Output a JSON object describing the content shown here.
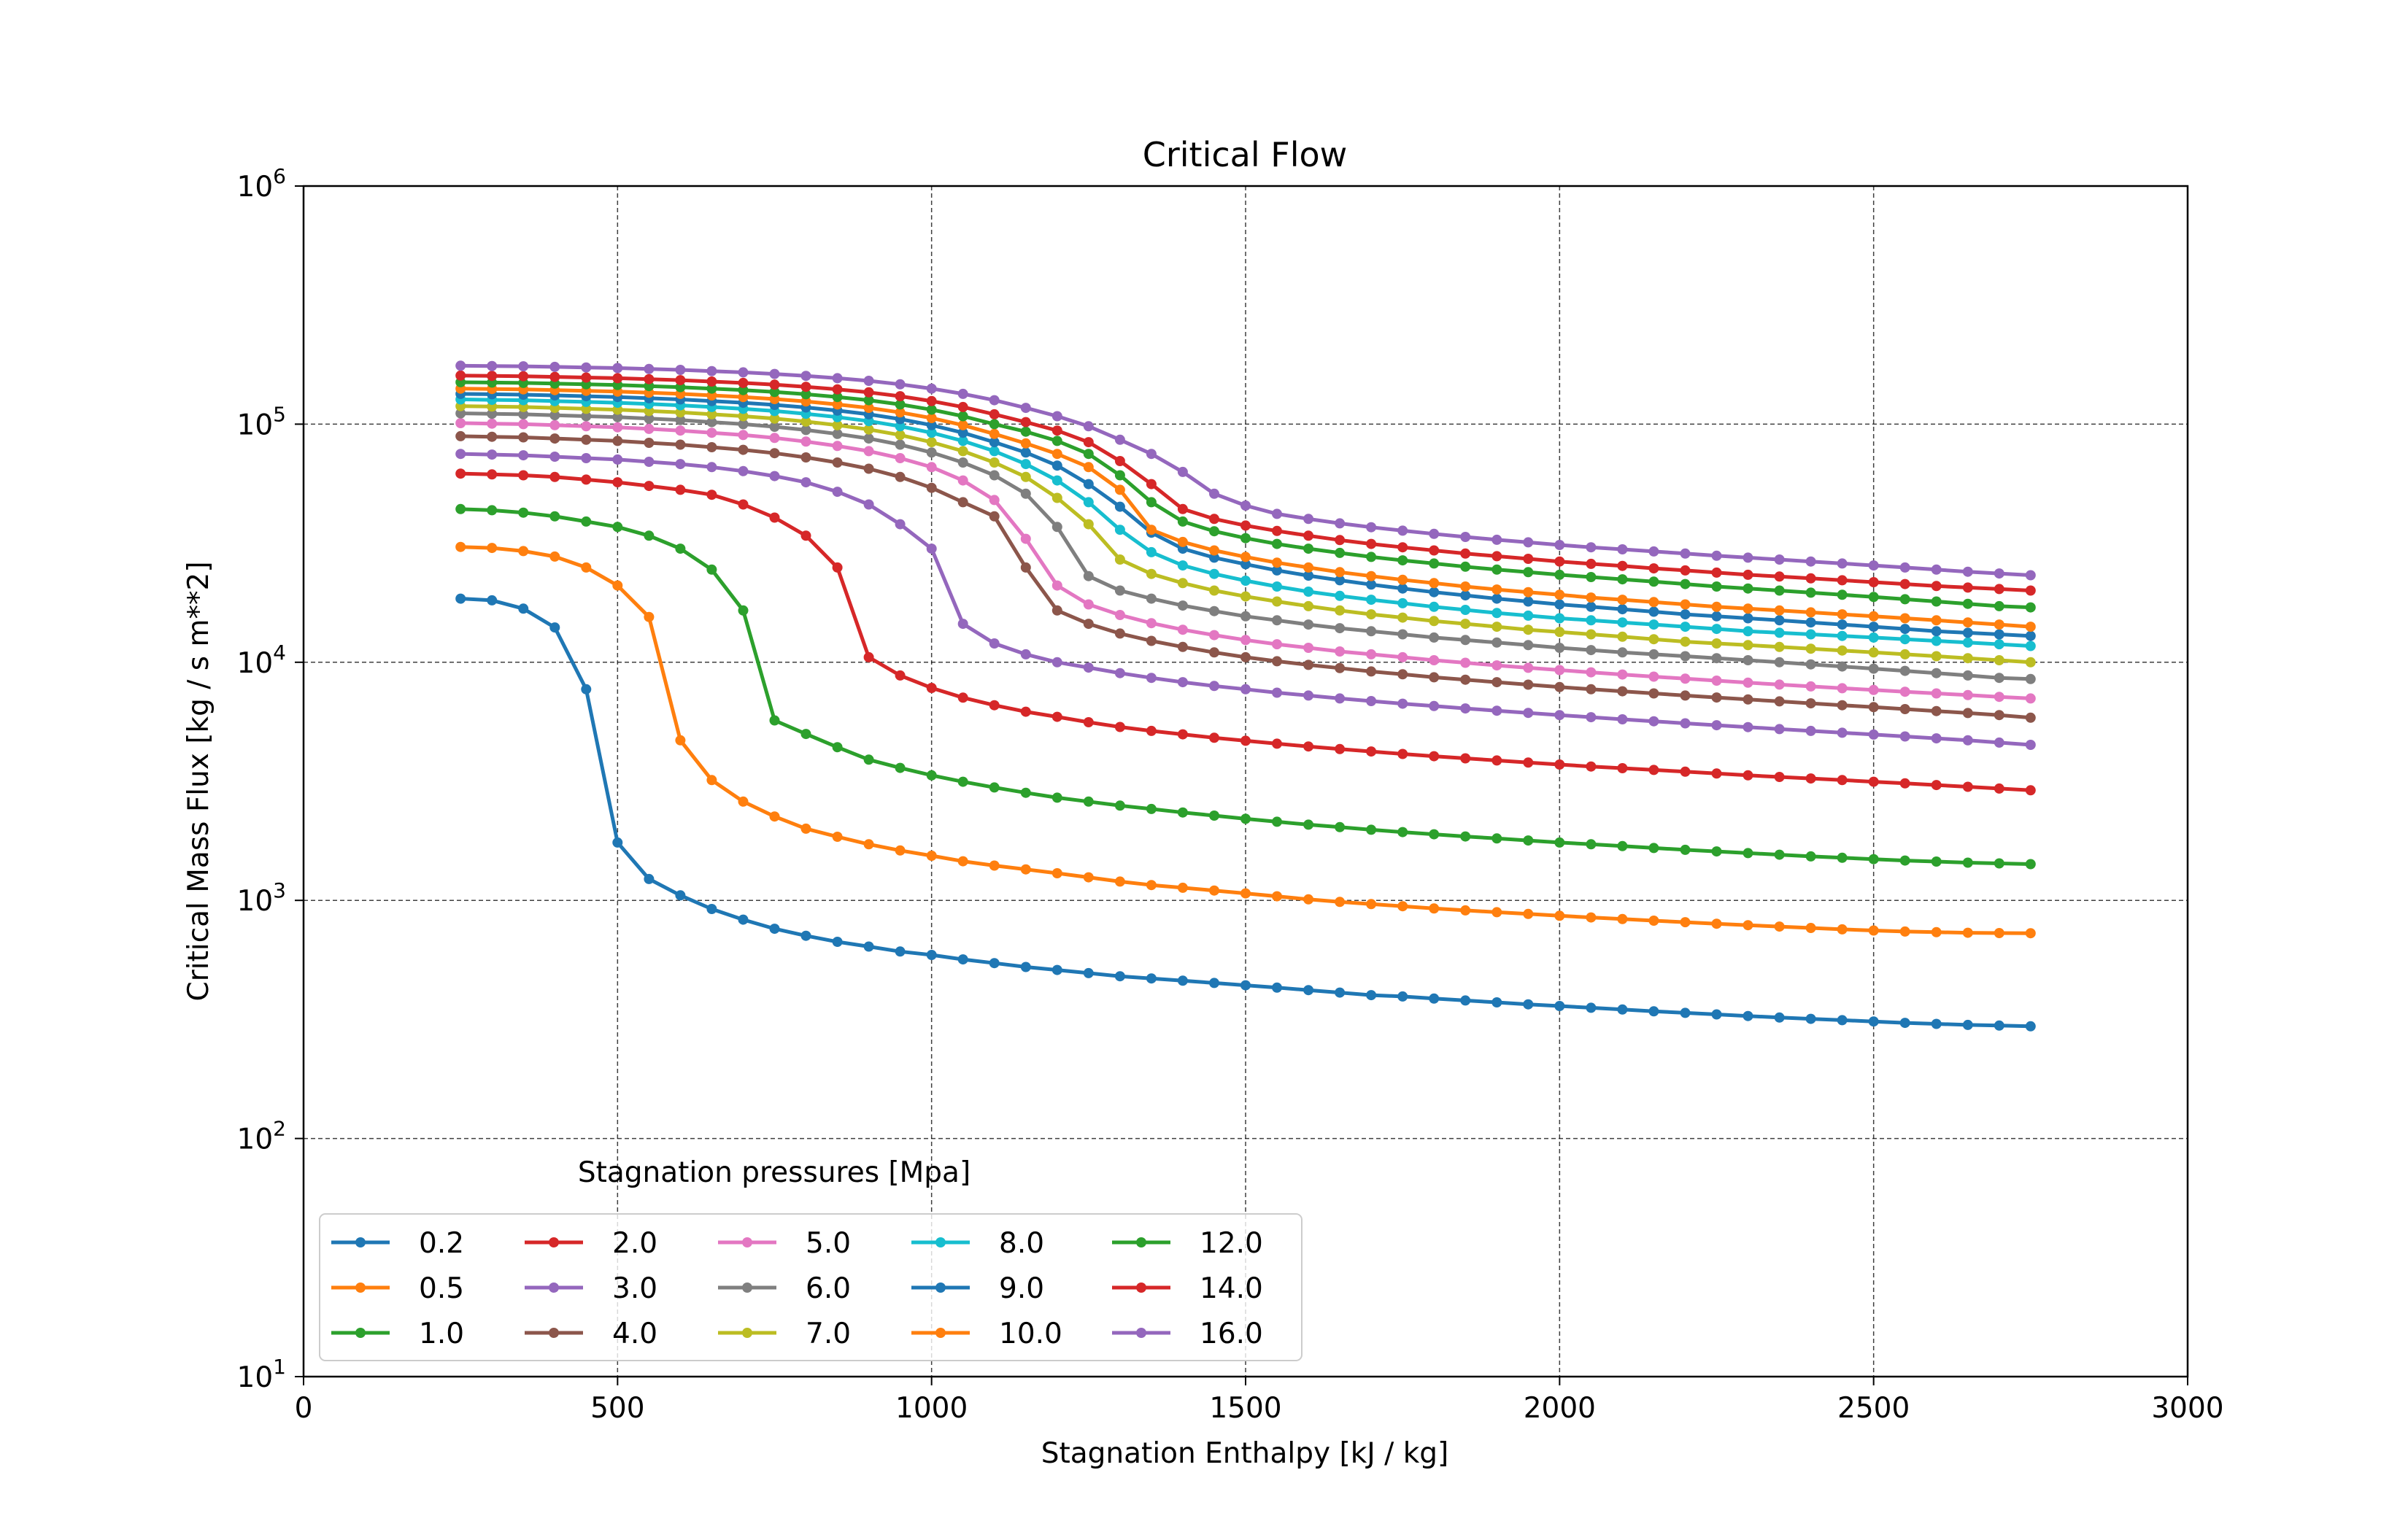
{
  "chart_data": {
    "type": "line",
    "title": "Critical Flow",
    "xlabel": "Stagnation Enthalpy [kJ / kg]",
    "ylabel": "Critical Mass Flux [kg / s m**2]",
    "xlim": [
      0,
      3000
    ],
    "ylim": [
      10,
      1000000
    ],
    "yscale": "log",
    "grid": true,
    "x_ticks": [
      0,
      500,
      1000,
      1500,
      2000,
      2500,
      3000
    ],
    "y_tick_base": "10",
    "y_tick_exponents": [
      "1",
      "2",
      "3",
      "4",
      "5",
      "6"
    ],
    "legend": {
      "title": "Stagnation pressures [Mpa]",
      "placement": "lower-left",
      "columns": 5
    },
    "x_start": 250,
    "x_step": 50,
    "series": [
      {
        "name": "0.2",
        "color": "#1f77b4",
        "values": [
          18500,
          18200,
          16800,
          14000,
          7700,
          1750,
          1230,
          1050,
          920,
          830,
          760,
          710,
          670,
          640,
          610,
          590,
          565,
          545,
          525,
          510,
          495,
          480,
          470,
          460,
          450,
          440,
          430,
          420,
          410,
          400,
          395,
          387,
          380,
          373,
          366,
          360,
          354,
          348,
          342,
          337,
          332,
          327,
          322,
          318,
          314,
          310,
          306,
          303,
          300,
          298,
          296
        ]
      },
      {
        "name": "0.5",
        "color": "#ff7f0e",
        "values": [
          30500,
          30200,
          29300,
          27800,
          25000,
          21000,
          15500,
          4700,
          3200,
          2600,
          2250,
          2000,
          1850,
          1720,
          1620,
          1540,
          1460,
          1400,
          1350,
          1300,
          1250,
          1200,
          1160,
          1130,
          1100,
          1070,
          1040,
          1010,
          985,
          965,
          945,
          925,
          908,
          892,
          877,
          862,
          848,
          835,
          822,
          810,
          798,
          787,
          776,
          766,
          756,
          747,
          740,
          735,
          731,
          729,
          728
        ]
      },
      {
        "name": "1.0",
        "color": "#2ca02c",
        "values": [
          44000,
          43500,
          42500,
          41000,
          39000,
          37000,
          34000,
          30000,
          24500,
          16500,
          5700,
          5000,
          4400,
          3900,
          3600,
          3350,
          3150,
          2980,
          2830,
          2700,
          2600,
          2500,
          2420,
          2340,
          2270,
          2200,
          2140,
          2080,
          2030,
          1980,
          1935,
          1895,
          1855,
          1820,
          1785,
          1750,
          1720,
          1690,
          1660,
          1630,
          1605,
          1580,
          1555,
          1530,
          1510,
          1490,
          1470,
          1455,
          1440,
          1430,
          1420
        ]
      },
      {
        "name": "2.0",
        "color": "#d62728",
        "values": [
          62000,
          61500,
          61000,
          60000,
          58500,
          57000,
          55000,
          53000,
          50500,
          46000,
          40500,
          34000,
          25000,
          10500,
          8800,
          7800,
          7100,
          6600,
          6200,
          5900,
          5600,
          5350,
          5150,
          4980,
          4820,
          4680,
          4550,
          4430,
          4320,
          4220,
          4120,
          4030,
          3950,
          3870,
          3790,
          3720,
          3650,
          3590,
          3530,
          3470,
          3410,
          3350,
          3300,
          3250,
          3200,
          3150,
          3100,
          3050,
          3000,
          2950,
          2900
        ]
      },
      {
        "name": "3.0",
        "color": "#9467bd",
        "values": [
          75000,
          74500,
          74000,
          73000,
          72000,
          71000,
          69500,
          68000,
          66000,
          63500,
          60500,
          57000,
          52000,
          46000,
          38000,
          30000,
          14500,
          12000,
          10800,
          10000,
          9500,
          9000,
          8600,
          8250,
          7950,
          7700,
          7450,
          7250,
          7050,
          6870,
          6700,
          6550,
          6400,
          6260,
          6130,
          6000,
          5880,
          5760,
          5650,
          5540,
          5440,
          5340,
          5240,
          5150,
          5060,
          4970,
          4880,
          4790,
          4700,
          4600,
          4500
        ]
      },
      {
        "name": "4.0",
        "color": "#8c564b",
        "values": [
          89000,
          88500,
          88000,
          87000,
          86000,
          85000,
          83500,
          82000,
          80000,
          78000,
          75500,
          72500,
          69000,
          65000,
          60000,
          54000,
          47000,
          41000,
          25000,
          16500,
          14500,
          13200,
          12300,
          11600,
          11000,
          10500,
          10100,
          9750,
          9450,
          9150,
          8900,
          8650,
          8450,
          8250,
          8050,
          7870,
          7700,
          7550,
          7400,
          7250,
          7110,
          6980,
          6850,
          6720,
          6600,
          6480,
          6360,
          6240,
          6120,
          6000,
          5850
        ]
      },
      {
        "name": "5.0",
        "color": "#e377c2",
        "values": [
          101000,
          100500,
          100000,
          99000,
          98000,
          97000,
          95500,
          94000,
          92000,
          90000,
          87500,
          84500,
          81000,
          77000,
          72000,
          66000,
          58000,
          48000,
          33000,
          21000,
          17500,
          15800,
          14600,
          13700,
          13000,
          12400,
          11900,
          11500,
          11100,
          10800,
          10500,
          10200,
          9950,
          9700,
          9480,
          9270,
          9070,
          8880,
          8700,
          8530,
          8370,
          8210,
          8060,
          7920,
          7780,
          7650,
          7520,
          7400,
          7280,
          7160,
          7050
        ]
      },
      {
        "name": "6.0",
        "color": "#7f7f7f",
        "values": [
          111000,
          110500,
          110000,
          109000,
          108000,
          107000,
          105500,
          104000,
          102000,
          100000,
          97500,
          94500,
          91000,
          87000,
          82000,
          76000,
          69000,
          61000,
          51000,
          37000,
          23000,
          20000,
          18500,
          17300,
          16400,
          15600,
          15000,
          14400,
          13900,
          13500,
          13100,
          12700,
          12400,
          12100,
          11800,
          11500,
          11250,
          11000,
          10800,
          10600,
          10400,
          10200,
          10000,
          9800,
          9600,
          9400,
          9200,
          9000,
          8800,
          8600,
          8500
        ]
      },
      {
        "name": "7.0",
        "color": "#bcbd22",
        "values": [
          119000,
          118500,
          118000,
          117000,
          116000,
          115000,
          113500,
          112000,
          110000,
          108000,
          105500,
          102500,
          99000,
          95000,
          90000,
          84000,
          77000,
          69000,
          60000,
          49000,
          38000,
          27000,
          23500,
          21500,
          20000,
          18900,
          18000,
          17200,
          16500,
          15900,
          15400,
          14900,
          14500,
          14100,
          13700,
          13400,
          13100,
          12800,
          12500,
          12200,
          12000,
          11800,
          11600,
          11400,
          11200,
          11000,
          10800,
          10600,
          10400,
          10200,
          10000
        ]
      },
      {
        "name": "8.0",
        "color": "#17becf",
        "values": [
          127000,
          126500,
          126000,
          125000,
          124000,
          123000,
          121500,
          120000,
          118000,
          116000,
          113500,
          110500,
          107000,
          103000,
          98000,
          92000,
          85000,
          77000,
          68000,
          58000,
          47000,
          36000,
          29000,
          25500,
          23500,
          22000,
          20800,
          19800,
          19000,
          18300,
          17700,
          17100,
          16600,
          16100,
          15700,
          15300,
          15000,
          14700,
          14400,
          14100,
          13800,
          13500,
          13300,
          13100,
          12900,
          12700,
          12500,
          12300,
          12100,
          11900,
          11700
        ]
      },
      {
        "name": "9.0",
        "color": "#1f77b4",
        "values": [
          134000,
          133500,
          133000,
          132000,
          131000,
          130000,
          128500,
          127000,
          125000,
          123000,
          120500,
          117500,
          114000,
          110000,
          105000,
          99000,
          92000,
          84000,
          76000,
          67000,
          56000,
          45000,
          35000,
          30000,
          27500,
          25800,
          24300,
          23100,
          22100,
          21200,
          20400,
          19700,
          19100,
          18500,
          18000,
          17500,
          17100,
          16700,
          16300,
          15900,
          15600,
          15300,
          15000,
          14700,
          14400,
          14100,
          13800,
          13500,
          13300,
          13100,
          12900
        ]
      },
      {
        "name": "10.0",
        "color": "#ff7f0e",
        "values": [
          141000,
          140500,
          140000,
          139000,
          138000,
          137000,
          135500,
          134000,
          132000,
          130000,
          127500,
          124500,
          121000,
          117000,
          112000,
          106000,
          99000,
          91000,
          83000,
          75000,
          66000,
          53000,
          36000,
          32000,
          29500,
          27700,
          26200,
          25000,
          23900,
          23000,
          22200,
          21500,
          20800,
          20200,
          19700,
          19200,
          18700,
          18300,
          17900,
          17500,
          17100,
          16800,
          16500,
          16200,
          15900,
          15600,
          15300,
          15000,
          14700,
          14400,
          14100
        ]
      },
      {
        "name": "12.0",
        "color": "#2ca02c",
        "values": [
          150000,
          149500,
          149000,
          148000,
          147000,
          146000,
          144500,
          143000,
          141000,
          139000,
          136500,
          133500,
          130000,
          126000,
          121000,
          115000,
          108000,
          100000,
          93000,
          85000,
          75000,
          61000,
          47000,
          39000,
          35500,
          33200,
          31400,
          30000,
          28800,
          27700,
          26800,
          26000,
          25200,
          24500,
          23900,
          23300,
          22800,
          22300,
          21800,
          21300,
          20800,
          20400,
          20000,
          19600,
          19200,
          18800,
          18400,
          18000,
          17600,
          17200,
          17000
        ]
      },
      {
        "name": "14.0",
        "color": "#d62728",
        "values": [
          160000,
          159500,
          159000,
          158000,
          157000,
          156000,
          154500,
          153000,
          151000,
          149000,
          146500,
          143500,
          140000,
          136000,
          131000,
          125000,
          118000,
          110000,
          102000,
          94000,
          84000,
          70000,
          56000,
          44000,
          40000,
          37500,
          35600,
          34000,
          32600,
          31400,
          30400,
          29500,
          28600,
          27900,
          27200,
          26500,
          25900,
          25400,
          24800,
          24300,
          23800,
          23300,
          22900,
          22500,
          22100,
          21700,
          21300,
          20900,
          20600,
          20300,
          20000
        ]
      },
      {
        "name": "16.0",
        "color": "#9467bd",
        "values": [
          176000,
          175500,
          175000,
          174000,
          173000,
          172000,
          170500,
          169000,
          167000,
          165000,
          162500,
          159500,
          156000,
          152000,
          147000,
          141000,
          134000,
          126000,
          117000,
          108000,
          98000,
          86000,
          75000,
          63000,
          51000,
          45500,
          42000,
          40000,
          38300,
          36900,
          35700,
          34600,
          33600,
          32700,
          31900,
          31100,
          30400,
          29800,
          29200,
          28600,
          28000,
          27500,
          27000,
          26500,
          26000,
          25500,
          25000,
          24500,
          24000,
          23600,
          23200
        ]
      }
    ]
  }
}
